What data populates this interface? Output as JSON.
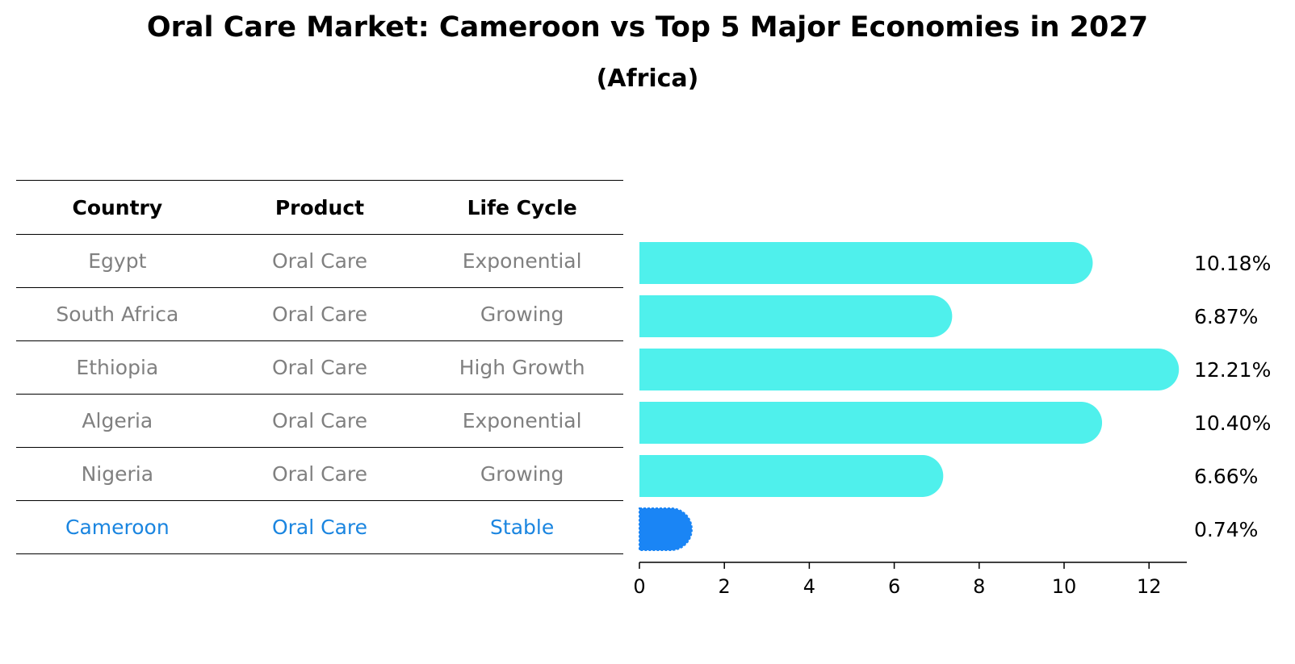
{
  "title": "Oral Care Market: Cameroon vs Top 5 Major Economies in 2027",
  "subtitle": "(Africa)",
  "table": {
    "headers": [
      "Country",
      "Product",
      "Life Cycle"
    ],
    "rows": [
      {
        "country": "Egypt",
        "product": "Oral Care",
        "lifecycle": "Exponential"
      },
      {
        "country": "South Africa",
        "product": "Oral Care",
        "lifecycle": "Growing"
      },
      {
        "country": "Ethiopia",
        "product": "Oral Care",
        "lifecycle": "High Growth"
      },
      {
        "country": "Algeria",
        "product": "Oral Care",
        "lifecycle": "Exponential"
      },
      {
        "country": "Nigeria",
        "product": "Oral Care",
        "lifecycle": "Growing"
      },
      {
        "country": "Cameroon",
        "product": "Oral Care",
        "lifecycle": "Stable"
      }
    ]
  },
  "colors": {
    "bar": "#4ff0ec",
    "highlight": "#1a85f5",
    "label": "#000000"
  },
  "chart_data": {
    "type": "bar",
    "orientation": "horizontal",
    "title": "Oral Care Market: Cameroon vs Top 5 Major Economies in 2027",
    "subtitle": "(Africa)",
    "categories": [
      "Egypt",
      "South Africa",
      "Ethiopia",
      "Algeria",
      "Nigeria",
      "Cameroon"
    ],
    "values": [
      10.18,
      6.87,
      12.21,
      10.4,
      6.66,
      0.74
    ],
    "value_labels": [
      "10.18%",
      "6.87%",
      "12.21%",
      "10.40%",
      "6.66%",
      "0.74%"
    ],
    "highlight_index": 5,
    "xticks": [
      0,
      2,
      4,
      6,
      8,
      10,
      12
    ],
    "xlim": [
      0,
      12.8
    ],
    "xlabel": "",
    "ylabel": "",
    "grid": false
  }
}
